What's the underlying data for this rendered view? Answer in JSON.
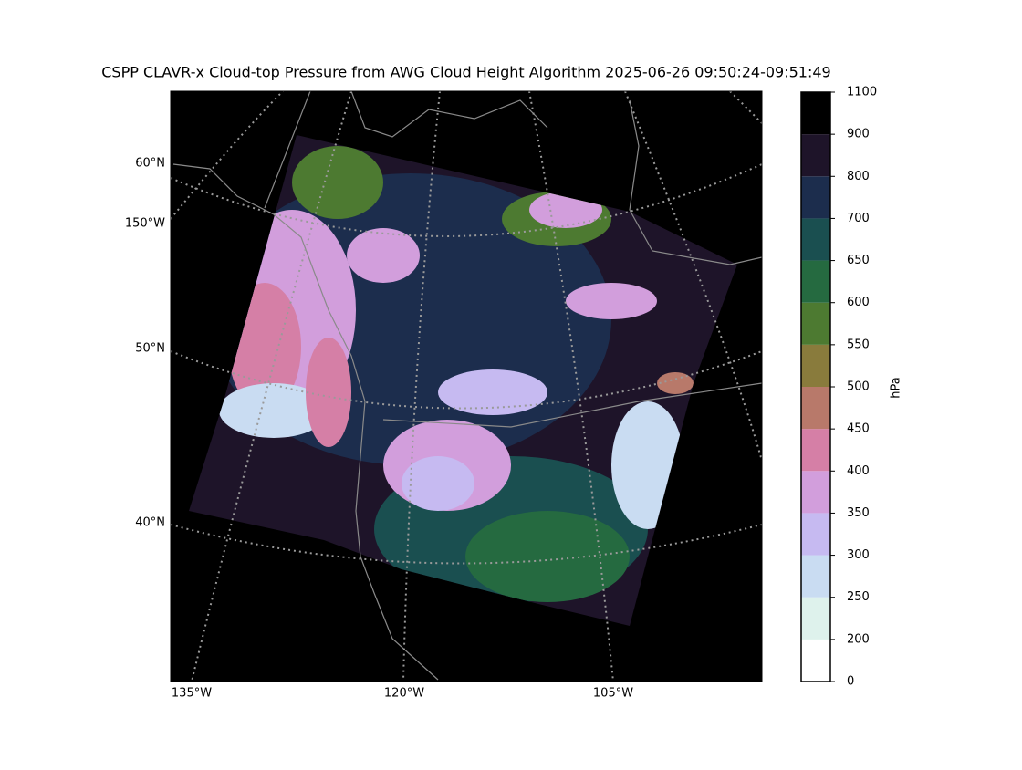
{
  "title": "CSPP CLAVR-x Cloud-top Pressure from AWG Cloud Height Algorithm 2025-06-26 09:50:24-09:51:49",
  "map": {
    "left_labels": [
      "60°N",
      "150°W",
      "50°N",
      "40°N"
    ],
    "bottom_labels": [
      "135°W",
      "120°W",
      "105°W"
    ]
  },
  "colorbar": {
    "label": "hPa",
    "ticks": [
      0,
      200,
      250,
      300,
      350,
      400,
      450,
      500,
      550,
      600,
      650,
      700,
      800,
      900,
      1100
    ],
    "colors": [
      "#ffffff",
      "#def2ec",
      "#c9dcf2",
      "#c6baf1",
      "#d29edc",
      "#d57fa6",
      "#b8796a",
      "#897b3c",
      "#4d7a31",
      "#256a40",
      "#1a4f50",
      "#1c2d4d",
      "#1e1429",
      "#000000"
    ]
  }
}
